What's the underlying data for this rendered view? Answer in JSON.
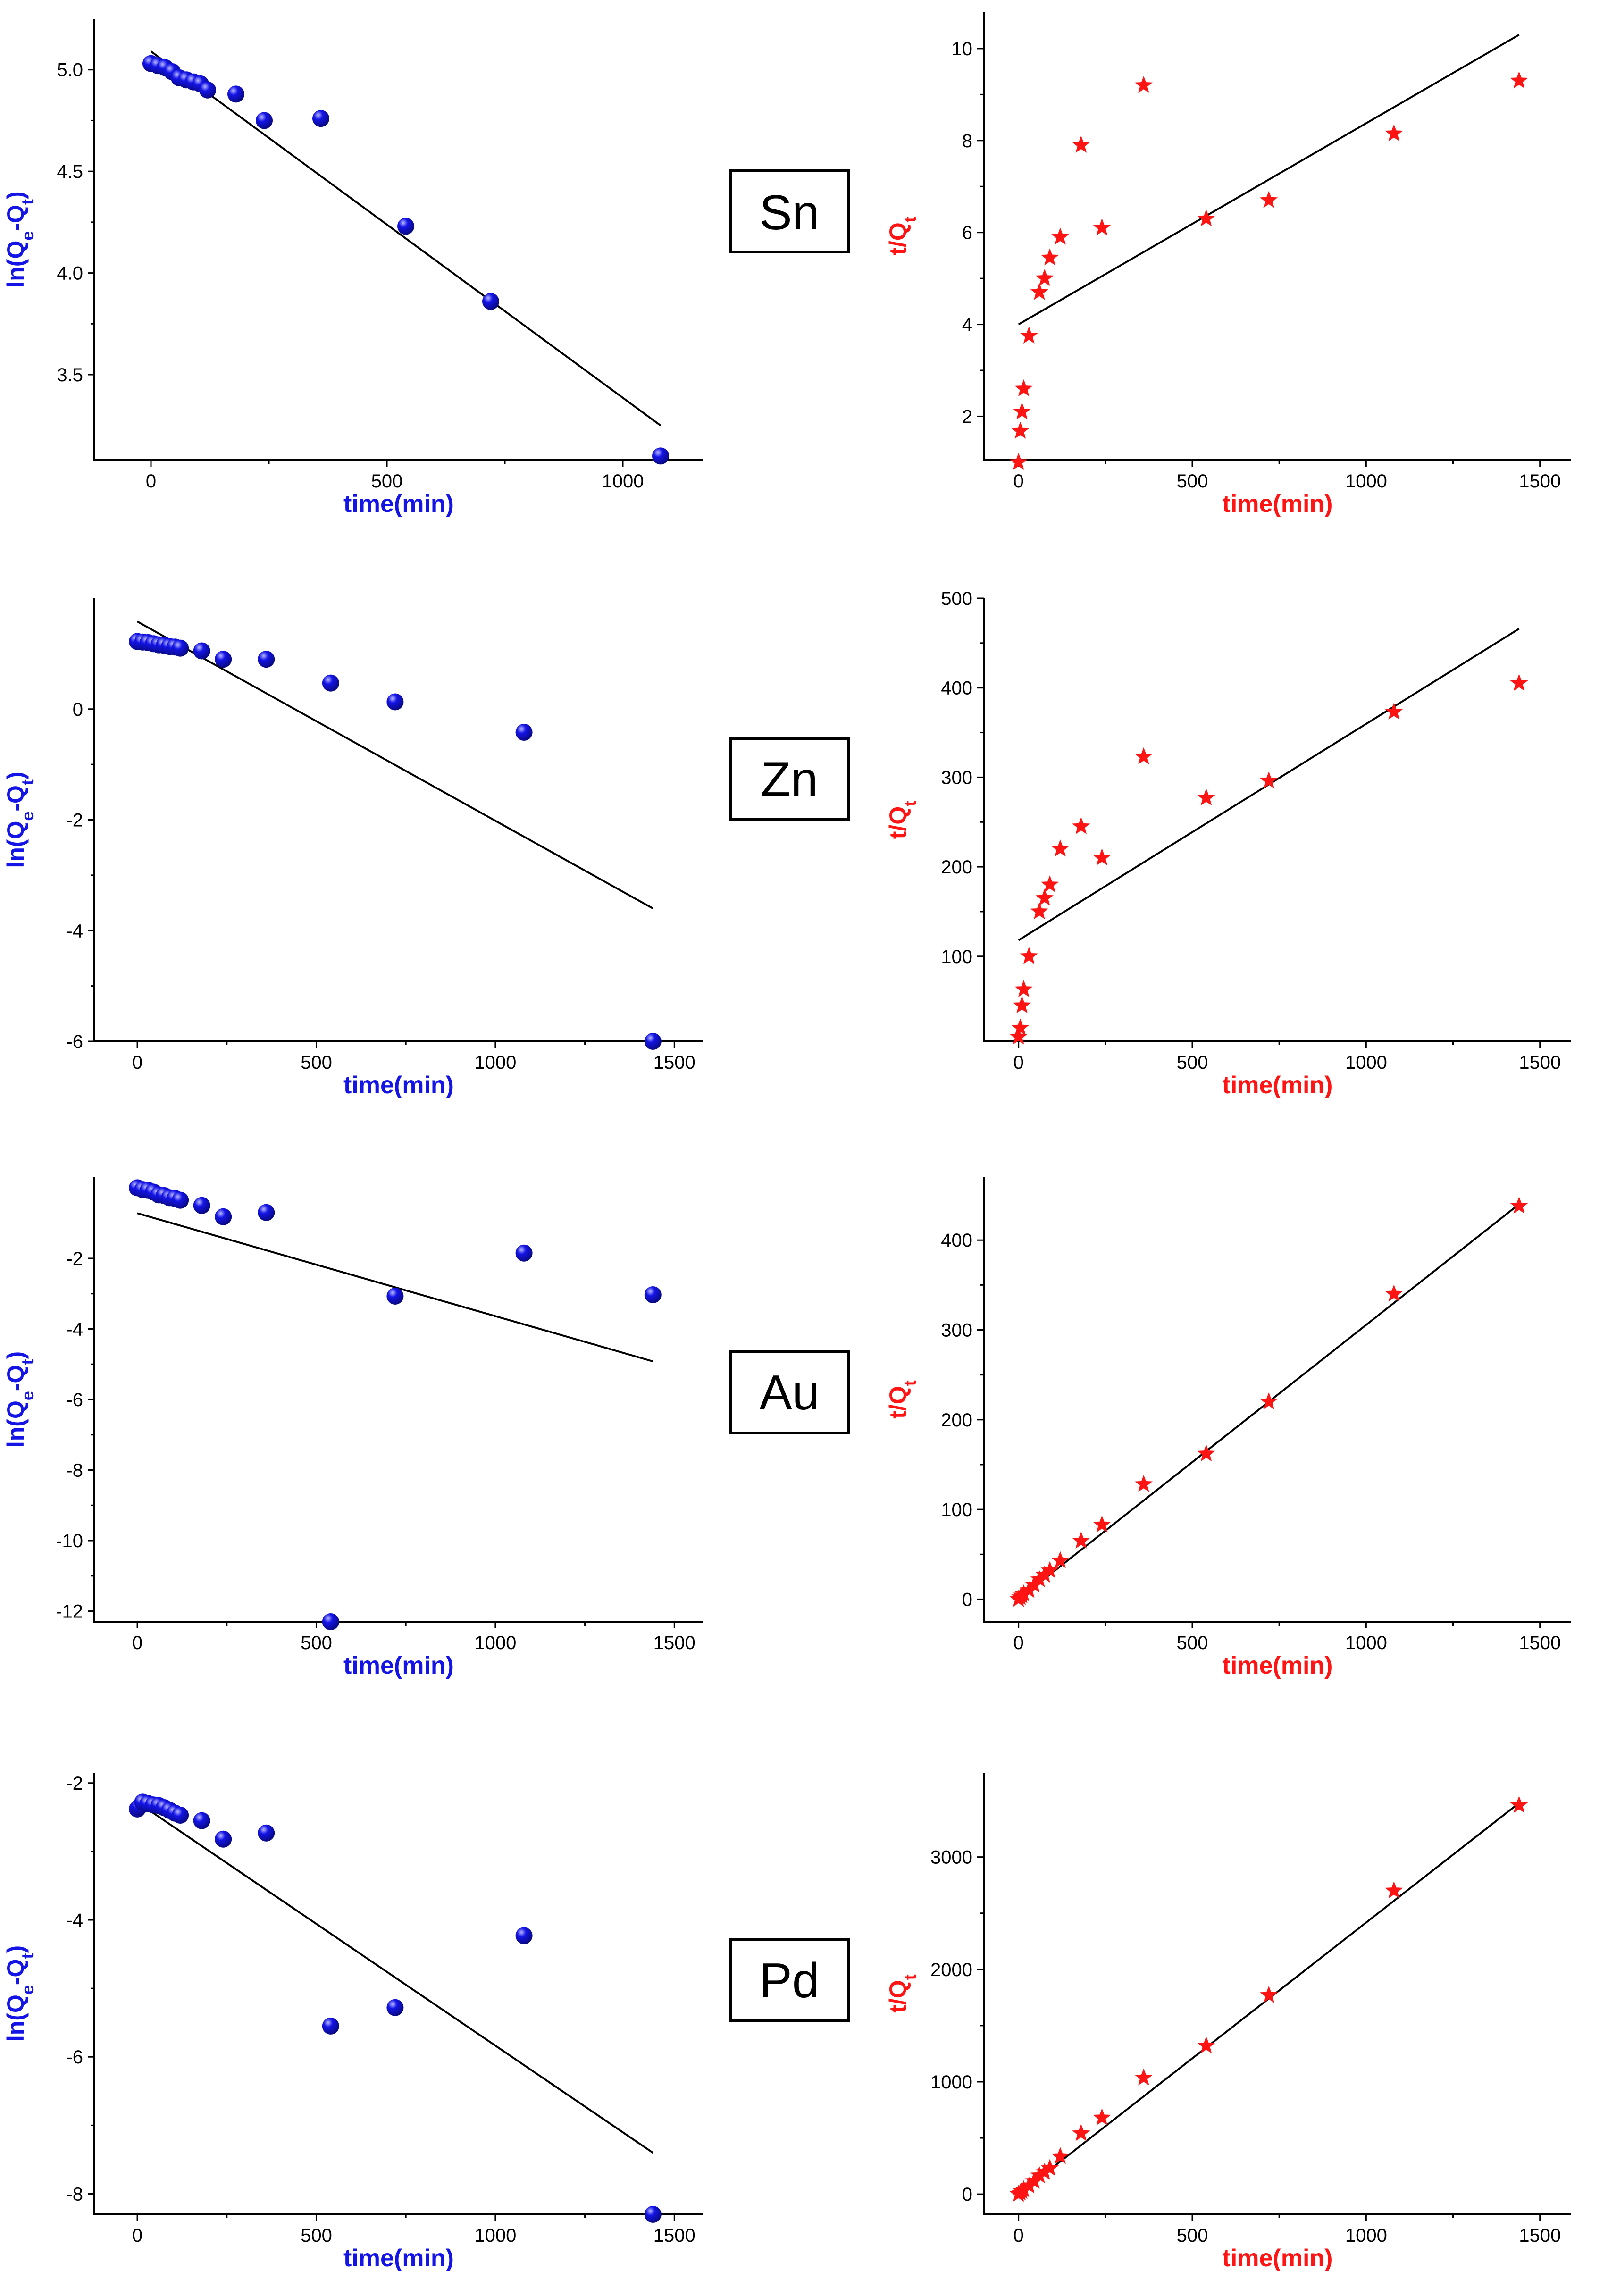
{
  "colors": {
    "first_order": "#1414e6",
    "second_order": "#ff1414",
    "axis": "#000000"
  },
  "chart_data": [
    {
      "id": "sn-pfo",
      "metal": "Sn",
      "type": "scatter",
      "color": "#1414e6",
      "marker": "sphere",
      "xlabel": "time(min)",
      "ylabel": "ln(Qe-Qt)",
      "xlim": [
        -120,
        1170
      ],
      "ylim": [
        3.08,
        5.25
      ],
      "xticks": [
        0,
        500,
        1000
      ],
      "yticks": [
        3.5,
        4.0,
        4.5,
        5.0
      ],
      "ytick_labels": [
        "3.5",
        "4.0",
        "4.5",
        "5.0"
      ],
      "points": [
        [
          0,
          5.03
        ],
        [
          15,
          5.02
        ],
        [
          30,
          5.01
        ],
        [
          45,
          4.99
        ],
        [
          60,
          4.96
        ],
        [
          75,
          4.95
        ],
        [
          90,
          4.94
        ],
        [
          105,
          4.93
        ],
        [
          120,
          4.9
        ],
        [
          180,
          4.88
        ],
        [
          240,
          4.75
        ],
        [
          360,
          4.76
        ],
        [
          540,
          4.23
        ],
        [
          720,
          3.86
        ],
        [
          1080,
          3.1
        ]
      ],
      "fit": [
        [
          0,
          5.09
        ],
        [
          1080,
          3.25
        ]
      ]
    },
    {
      "id": "sn-pso",
      "metal": "Sn",
      "type": "scatter",
      "color": "#ff1414",
      "marker": "star",
      "xlabel": "time(min)",
      "ylabel": "t/Qt",
      "xlim": [
        -100,
        1590
      ],
      "ylim": [
        1.05,
        10.8
      ],
      "xticks": [
        0,
        500,
        1000,
        1500
      ],
      "yticks": [
        2,
        4,
        6,
        8,
        10
      ],
      "ytick_labels": [
        "2",
        "4",
        "6",
        "8",
        "10"
      ],
      "points": [
        [
          0,
          1.0
        ],
        [
          5,
          1.68
        ],
        [
          10,
          2.1
        ],
        [
          15,
          2.6
        ],
        [
          30,
          3.75
        ],
        [
          60,
          4.7
        ],
        [
          75,
          5.0
        ],
        [
          90,
          5.45
        ],
        [
          120,
          5.9
        ],
        [
          180,
          7.9
        ],
        [
          240,
          6.1
        ],
        [
          360,
          9.2
        ],
        [
          540,
          6.3
        ],
        [
          720,
          6.7
        ],
        [
          1080,
          8.15
        ],
        [
          1440,
          9.3
        ]
      ],
      "fit": [
        [
          0,
          4.0
        ],
        [
          1440,
          10.3
        ]
      ]
    },
    {
      "id": "zn-pfo",
      "metal": "Zn",
      "type": "scatter",
      "color": "#1414e6",
      "marker": "sphere",
      "xlabel": "time(min)",
      "ylabel": "ln(Qe-Qt)",
      "xlim": [
        -120,
        1580
      ],
      "ylim": [
        -6.0,
        2.0
      ],
      "xticks": [
        0,
        500,
        1000,
        1500
      ],
      "yticks": [
        -6,
        -4,
        -2,
        0
      ],
      "ytick_labels": [
        "-6",
        "-4",
        "-2",
        "0"
      ],
      "points": [
        [
          0,
          1.22
        ],
        [
          15,
          1.21
        ],
        [
          30,
          1.2
        ],
        [
          45,
          1.18
        ],
        [
          60,
          1.16
        ],
        [
          75,
          1.15
        ],
        [
          90,
          1.13
        ],
        [
          105,
          1.12
        ],
        [
          120,
          1.1
        ],
        [
          180,
          1.05
        ],
        [
          240,
          0.9
        ],
        [
          360,
          0.9
        ],
        [
          540,
          0.47
        ],
        [
          720,
          0.13
        ],
        [
          1080,
          -0.42
        ],
        [
          1440,
          -6.0
        ]
      ],
      "fit": [
        [
          0,
          1.58
        ],
        [
          1440,
          -3.6
        ]
      ]
    },
    {
      "id": "zn-pso",
      "metal": "Zn",
      "type": "scatter",
      "color": "#ff1414",
      "marker": "star",
      "xlabel": "time(min)",
      "ylabel": "t/Qt",
      "xlim": [
        -100,
        1590
      ],
      "ylim": [
        5,
        500
      ],
      "xticks": [
        0,
        500,
        1000,
        1500
      ],
      "yticks": [
        100,
        200,
        300,
        400,
        500
      ],
      "ytick_labels": [
        "100",
        "200",
        "300",
        "400",
        "500"
      ],
      "points": [
        [
          0,
          10
        ],
        [
          5,
          20
        ],
        [
          10,
          45
        ],
        [
          15,
          63
        ],
        [
          30,
          100
        ],
        [
          60,
          150
        ],
        [
          75,
          165
        ],
        [
          90,
          180
        ],
        [
          120,
          220
        ],
        [
          180,
          245
        ],
        [
          240,
          210
        ],
        [
          360,
          323
        ],
        [
          540,
          277
        ],
        [
          720,
          296
        ],
        [
          1080,
          373
        ],
        [
          1440,
          405
        ]
      ],
      "fit": [
        [
          0,
          118
        ],
        [
          1440,
          466
        ]
      ]
    },
    {
      "id": "au-pfo",
      "metal": "Au",
      "type": "scatter",
      "color": "#1414e6",
      "marker": "sphere",
      "xlabel": "time(min)",
      "ylabel": "ln(Qe-Qt)",
      "xlim": [
        -120,
        1580
      ],
      "ylim": [
        -12.3,
        0.3
      ],
      "xticks": [
        0,
        500,
        1000,
        1500
      ],
      "yticks": [
        -12,
        -10,
        -8,
        -6,
        -4,
        -2
      ],
      "ytick_labels": [
        "-12",
        "-10",
        "-8",
        "-6",
        "-4",
        "-2"
      ],
      "points": [
        [
          0,
          0.0
        ],
        [
          15,
          -0.05
        ],
        [
          30,
          -0.07
        ],
        [
          45,
          -0.12
        ],
        [
          60,
          -0.2
        ],
        [
          75,
          -0.22
        ],
        [
          90,
          -0.28
        ],
        [
          105,
          -0.3
        ],
        [
          120,
          -0.35
        ],
        [
          180,
          -0.5
        ],
        [
          240,
          -0.82
        ],
        [
          360,
          -0.7
        ],
        [
          540,
          -12.3
        ],
        [
          720,
          -3.07
        ],
        [
          1080,
          -1.85
        ],
        [
          1440,
          -3.03
        ]
      ],
      "fit": [
        [
          0,
          -0.72
        ],
        [
          1440,
          -4.92
        ]
      ]
    },
    {
      "id": "au-pso",
      "metal": "Au",
      "type": "scatter",
      "color": "#ff1414",
      "marker": "star",
      "xlabel": "time(min)",
      "ylabel": "t/Qt",
      "xlim": [
        -100,
        1590
      ],
      "ylim": [
        -25,
        470
      ],
      "xticks": [
        0,
        500,
        1000,
        1500
      ],
      "yticks": [
        0,
        100,
        200,
        300,
        400
      ],
      "ytick_labels": [
        "0",
        "100",
        "200",
        "300",
        "400"
      ],
      "points": [
        [
          0,
          0
        ],
        [
          5,
          2
        ],
        [
          10,
          4
        ],
        [
          15,
          6
        ],
        [
          30,
          10
        ],
        [
          45,
          16
        ],
        [
          60,
          22
        ],
        [
          75,
          27
        ],
        [
          90,
          32
        ],
        [
          120,
          43
        ],
        [
          180,
          65
        ],
        [
          240,
          83
        ],
        [
          360,
          128
        ],
        [
          540,
          162
        ],
        [
          720,
          220
        ],
        [
          1080,
          340
        ],
        [
          1440,
          438
        ]
      ],
      "fit": [
        [
          0,
          0
        ],
        [
          1440,
          440
        ]
      ]
    },
    {
      "id": "pd-pfo",
      "metal": "Pd",
      "type": "scatter",
      "color": "#1414e6",
      "marker": "sphere",
      "xlabel": "time(min)",
      "ylabel": "ln(Qe-Qt)",
      "xlim": [
        -120,
        1580
      ],
      "ylim": [
        -8.3,
        -1.85
      ],
      "xticks": [
        0,
        500,
        1000,
        1500
      ],
      "yticks": [
        -8,
        -6,
        -4,
        -2
      ],
      "ytick_labels": [
        "-8",
        "-6",
        "-4",
        "-2"
      ],
      "points": [
        [
          0,
          -2.38
        ],
        [
          5,
          -2.35
        ],
        [
          15,
          -2.28
        ],
        [
          30,
          -2.3
        ],
        [
          45,
          -2.32
        ],
        [
          60,
          -2.33
        ],
        [
          75,
          -2.36
        ],
        [
          90,
          -2.4
        ],
        [
          105,
          -2.44
        ],
        [
          120,
          -2.47
        ],
        [
          180,
          -2.55
        ],
        [
          240,
          -2.82
        ],
        [
          360,
          -2.73
        ],
        [
          540,
          -5.55
        ],
        [
          720,
          -5.28
        ],
        [
          1080,
          -4.23
        ],
        [
          1440,
          -8.3
        ]
      ],
      "fit": [
        [
          0,
          -2.28
        ],
        [
          1440,
          -7.4
        ]
      ]
    },
    {
      "id": "pd-pso",
      "metal": "Pd",
      "type": "scatter",
      "color": "#ff1414",
      "marker": "star",
      "xlabel": "time(min)",
      "ylabel": "t/Qt",
      "xlim": [
        -100,
        1590
      ],
      "ylim": [
        -180,
        3750
      ],
      "xticks": [
        0,
        500,
        1000,
        1500
      ],
      "yticks": [
        0,
        1000,
        2000,
        3000
      ],
      "ytick_labels": [
        "0",
        "1000",
        "2000",
        "3000"
      ],
      "points": [
        [
          0,
          0
        ],
        [
          5,
          12
        ],
        [
          10,
          25
        ],
        [
          15,
          40
        ],
        [
          30,
          75
        ],
        [
          45,
          115
        ],
        [
          60,
          165
        ],
        [
          75,
          195
        ],
        [
          90,
          230
        ],
        [
          120,
          335
        ],
        [
          180,
          540
        ],
        [
          240,
          680
        ],
        [
          360,
          1035
        ],
        [
          540,
          1320
        ],
        [
          720,
          1770
        ],
        [
          1080,
          2700
        ],
        [
          1440,
          3460
        ]
      ],
      "fit": [
        [
          0,
          0
        ],
        [
          1440,
          3480
        ]
      ]
    }
  ]
}
